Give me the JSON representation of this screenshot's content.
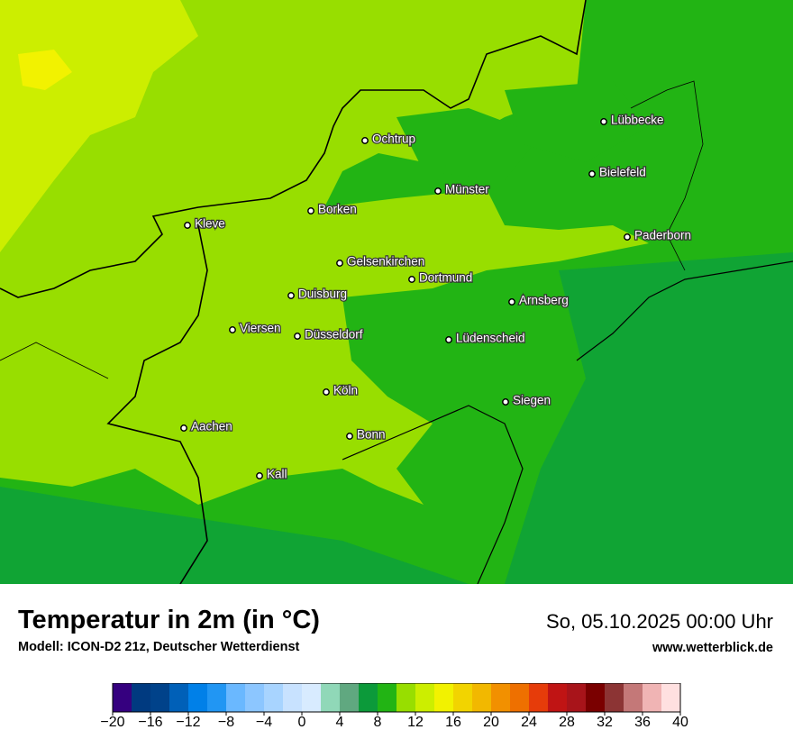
{
  "header": {
    "title": "Temperatur in 2m (in °C)",
    "subtitle": "Modell: ICON-D2 21z, Deutscher Wetterdienst",
    "date": "So, 05.10.2025 00:00 Uhr",
    "website": "www.wetterblick.de"
  },
  "cities": [
    "Ochtrup",
    "Lübbecke",
    "Bielefeld",
    "Münster",
    "Borken",
    "Kleve",
    "Paderborn",
    "Gelsenkirchen",
    "Dortmund",
    "Duisburg",
    "Arnsberg",
    "Viersen",
    "Düsseldorf",
    "Lüdenscheid",
    "Köln",
    "Siegen",
    "Aachen",
    "Bonn",
    "Kall"
  ],
  "colorbar": {
    "colors": [
      "#35007f",
      "#003a80",
      "#00428a",
      "#0060b8",
      "#0080e8",
      "#2196f3",
      "#6ab8ff",
      "#8cc6ff",
      "#a8d4ff",
      "#c8e2ff",
      "#d8ebff",
      "#90d8b8",
      "#60a880",
      "#0c9a3a",
      "#22b414",
      "#98de00",
      "#ccee00",
      "#f2f200",
      "#f2d400",
      "#f2b800",
      "#f29000",
      "#ee7000",
      "#e63c0a",
      "#c01414",
      "#a8141a",
      "#7a0000",
      "#8c3434",
      "#c47878",
      "#f0b4b4",
      "#ffe0e0"
    ],
    "lim": [
      -20,
      40
    ],
    "ticks": [
      {
        "value": -20,
        "label": "−20"
      },
      {
        "value": -16,
        "label": "−16"
      },
      {
        "value": -12,
        "label": "−12"
      },
      {
        "value": -8,
        "label": "−8"
      },
      {
        "value": -4,
        "label": "−4"
      },
      0,
      4,
      8,
      12,
      16,
      20,
      24,
      28,
      32,
      36,
      40
    ]
  }
}
